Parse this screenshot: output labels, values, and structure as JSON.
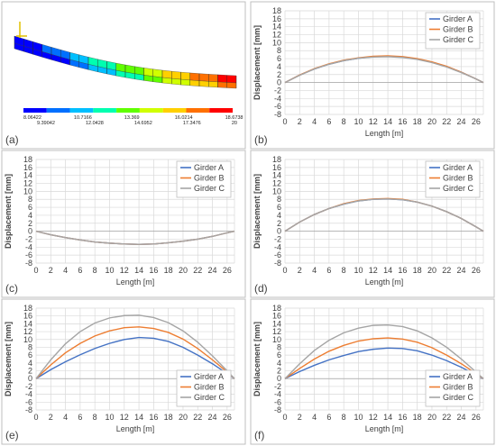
{
  "colors": {
    "girder_a": "#4472c4",
    "girder_b": "#ed7d31",
    "girder_c": "#a5a5a5",
    "grid": "#d9d9d9",
    "frame": "#bfbfbf",
    "text": "#404040"
  },
  "fe_model": {
    "label": "(a)",
    "colorbar_values_top": [
      "8.06422",
      "10.7166",
      "13.369",
      "16.0214",
      "18.6738"
    ],
    "colorbar_values_bottom": [
      "9.39042",
      "12.0428",
      "14.6952",
      "17.3476",
      "20"
    ],
    "colorbar_colors": [
      "#0000ff",
      "#0070ff",
      "#00bfff",
      "#00ffb0",
      "#60ff00",
      "#d0ff00",
      "#ffd000",
      "#ff7000",
      "#ff0000"
    ]
  },
  "chart_data": [
    {
      "type": "line",
      "label": "(b)",
      "xlabel": "Length [m]",
      "ylabel": "Displacement [mm]",
      "xlim": [
        0,
        27
      ],
      "xticks": [
        0,
        2,
        4,
        6,
        8,
        10,
        12,
        14,
        16,
        18,
        20,
        22,
        24,
        26
      ],
      "ylim": [
        -8,
        18
      ],
      "yticks": [
        -8,
        -6,
        -4,
        -2,
        0,
        2,
        4,
        6,
        8,
        10,
        12,
        14,
        16,
        18
      ],
      "grid": true,
      "legend": "top-right",
      "x": [
        0,
        2,
        4,
        6,
        8,
        10,
        12,
        14,
        16,
        18,
        20,
        22,
        24,
        26,
        27
      ],
      "series": [
        {
          "name": "Girder A",
          "values": [
            0,
            1.9,
            3.4,
            4.6,
            5.5,
            6.1,
            6.5,
            6.6,
            6.4,
            5.9,
            5.1,
            4.0,
            2.6,
            0.9,
            0
          ]
        },
        {
          "name": "Girder B",
          "values": [
            0,
            1.9,
            3.5,
            4.7,
            5.6,
            6.2,
            6.6,
            6.7,
            6.5,
            6.0,
            5.2,
            4.1,
            2.6,
            0.9,
            0
          ]
        },
        {
          "name": "Girder C",
          "values": [
            0,
            1.8,
            3.4,
            4.6,
            5.5,
            6.1,
            6.4,
            6.5,
            6.3,
            5.8,
            5.0,
            3.9,
            2.5,
            0.9,
            0
          ]
        }
      ]
    },
    {
      "type": "line",
      "label": "(c)",
      "xlabel": "Length [m]",
      "ylabel": "Displacement [mm]",
      "xlim": [
        0,
        27
      ],
      "xticks": [
        0,
        2,
        4,
        6,
        8,
        10,
        12,
        14,
        16,
        18,
        20,
        22,
        24,
        26
      ],
      "ylim": [
        -8,
        18
      ],
      "yticks": [
        -8,
        -6,
        -4,
        -2,
        0,
        2,
        4,
        6,
        8,
        10,
        12,
        14,
        16,
        18
      ],
      "grid": true,
      "legend": "top-right",
      "x": [
        0,
        2,
        4,
        6,
        8,
        10,
        12,
        14,
        16,
        18,
        20,
        22,
        24,
        26,
        27
      ],
      "series": [
        {
          "name": "Girder A",
          "values": [
            0,
            -0.9,
            -1.6,
            -2.2,
            -2.7,
            -3.0,
            -3.2,
            -3.3,
            -3.2,
            -2.9,
            -2.5,
            -2.0,
            -1.3,
            -0.4,
            0
          ]
        },
        {
          "name": "Girder B",
          "values": [
            0,
            -0.9,
            -1.6,
            -2.2,
            -2.7,
            -3.0,
            -3.2,
            -3.3,
            -3.2,
            -2.9,
            -2.5,
            -2.0,
            -1.3,
            -0.4,
            0
          ]
        },
        {
          "name": "Girder C",
          "values": [
            0,
            -0.9,
            -1.6,
            -2.2,
            -2.7,
            -3.0,
            -3.2,
            -3.3,
            -3.2,
            -2.9,
            -2.5,
            -2.0,
            -1.3,
            -0.4,
            0
          ]
        }
      ]
    },
    {
      "type": "line",
      "label": "(d)",
      "xlabel": "Length [m]",
      "ylabel": "Displacement [mm]",
      "xlim": [
        0,
        27
      ],
      "xticks": [
        0,
        2,
        4,
        6,
        8,
        10,
        12,
        14,
        16,
        18,
        20,
        22,
        24,
        26
      ],
      "ylim": [
        -8,
        18
      ],
      "yticks": [
        -8,
        -6,
        -4,
        -2,
        0,
        2,
        4,
        6,
        8,
        10,
        12,
        14,
        16,
        18
      ],
      "grid": true,
      "legend": "top-right",
      "x": [
        0,
        2,
        4,
        6,
        8,
        10,
        12,
        14,
        16,
        18,
        20,
        22,
        24,
        26,
        27
      ],
      "series": [
        {
          "name": "Girder A",
          "values": [
            0,
            2.3,
            4.2,
            5.7,
            6.8,
            7.6,
            8.0,
            8.1,
            7.9,
            7.3,
            6.3,
            4.9,
            3.2,
            1.1,
            0
          ]
        },
        {
          "name": "Girder B",
          "values": [
            0,
            2.3,
            4.2,
            5.7,
            6.9,
            7.7,
            8.1,
            8.2,
            8.0,
            7.3,
            6.3,
            4.9,
            3.2,
            1.1,
            0
          ]
        },
        {
          "name": "Girder C",
          "values": [
            0,
            2.3,
            4.2,
            5.7,
            6.8,
            7.6,
            8.0,
            8.1,
            7.9,
            7.3,
            6.3,
            4.9,
            3.2,
            1.1,
            0
          ]
        }
      ]
    },
    {
      "type": "line",
      "label": "(e)",
      "xlabel": "Length [m]",
      "ylabel": "Displacement [mm]",
      "xlim": [
        0,
        27
      ],
      "xticks": [
        0,
        2,
        4,
        6,
        8,
        10,
        12,
        14,
        16,
        18,
        20,
        22,
        24,
        26
      ],
      "ylim": [
        -8,
        18
      ],
      "yticks": [
        -8,
        -6,
        -4,
        -2,
        0,
        2,
        4,
        6,
        8,
        10,
        12,
        14,
        16,
        18
      ],
      "grid": true,
      "legend": "bottom-right",
      "x": [
        0,
        2,
        4,
        6,
        8,
        10,
        12,
        14,
        16,
        18,
        20,
        22,
        24,
        26,
        27
      ],
      "series": [
        {
          "name": "Girder A",
          "values": [
            0,
            2.3,
            4.3,
            6.1,
            7.7,
            9.0,
            10.0,
            10.5,
            10.3,
            9.5,
            8.0,
            6.0,
            3.8,
            1.3,
            0
          ]
        },
        {
          "name": "Girder B",
          "values": [
            0,
            3.5,
            6.6,
            9.0,
            10.9,
            12.2,
            13.0,
            13.2,
            12.8,
            11.8,
            10.1,
            7.7,
            4.8,
            1.7,
            0
          ]
        },
        {
          "name": "Girder C",
          "values": [
            0,
            4.8,
            8.9,
            12.0,
            14.2,
            15.5,
            16.1,
            16.2,
            15.6,
            14.3,
            12.2,
            9.3,
            5.8,
            2.0,
            0
          ]
        }
      ]
    },
    {
      "type": "line",
      "label": "(f)",
      "xlabel": "Length [m]",
      "ylabel": "Displacement [mm]",
      "xlim": [
        0,
        27
      ],
      "xticks": [
        0,
        2,
        4,
        6,
        8,
        10,
        12,
        14,
        16,
        18,
        20,
        22,
        24,
        26
      ],
      "ylim": [
        -8,
        18
      ],
      "yticks": [
        -8,
        -6,
        -4,
        -2,
        0,
        2,
        4,
        6,
        8,
        10,
        12,
        14,
        16,
        18
      ],
      "grid": true,
      "legend": "bottom-right",
      "x": [
        0,
        2,
        4,
        6,
        8,
        10,
        12,
        14,
        16,
        18,
        20,
        22,
        24,
        26,
        27
      ],
      "series": [
        {
          "name": "Girder A",
          "values": [
            0,
            1.8,
            3.4,
            4.8,
            5.9,
            6.9,
            7.5,
            7.8,
            7.7,
            7.1,
            6.0,
            4.6,
            2.9,
            1.0,
            0
          ]
        },
        {
          "name": "Girder B",
          "values": [
            0,
            2.6,
            5.0,
            7.0,
            8.5,
            9.6,
            10.2,
            10.4,
            10.1,
            9.3,
            7.9,
            6.0,
            3.8,
            1.3,
            0
          ]
        },
        {
          "name": "Girder C",
          "values": [
            0,
            3.8,
            7.2,
            9.8,
            11.7,
            12.9,
            13.6,
            13.7,
            13.3,
            12.2,
            10.4,
            8.0,
            5.0,
            1.7,
            0
          ]
        }
      ]
    }
  ]
}
